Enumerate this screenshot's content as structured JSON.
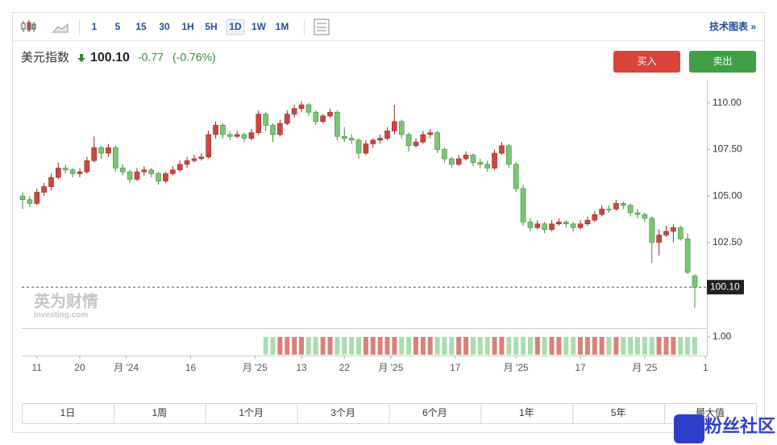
{
  "toolbar": {
    "intervals": [
      "1",
      "5",
      "15",
      "30",
      "1H",
      "5H",
      "1D",
      "1W",
      "1M"
    ],
    "active": "1D",
    "link": "技术图表 »"
  },
  "header": {
    "name": "美元指数",
    "price": "100.10",
    "change": "-0.77",
    "change_pct": "(-0.76%)",
    "buy": "买入",
    "sell": "卖出"
  },
  "periods": [
    "1日",
    "1周",
    "1个月",
    "3个月",
    "6个月",
    "1年",
    "5年",
    "最大值"
  ],
  "watermark": {
    "cn": "英为财情",
    "en": "Investing.com"
  },
  "corner_badge": "粉丝社区",
  "chart_data": {
    "type": "candlestick",
    "up_color": "#d0453e",
    "down_color": "#7cc576",
    "ylim": [
      97.9,
      111.2
    ],
    "yticks": [
      {
        "value": 110,
        "label": "110.00"
      },
      {
        "value": 107.5,
        "label": "107.50"
      },
      {
        "value": 105,
        "label": "105.00"
      },
      {
        "value": 102.5,
        "label": "102.50"
      }
    ],
    "last_price": {
      "value": 100.1,
      "label": "100.10"
    },
    "xticks": [
      {
        "value": 2,
        "label": "11"
      },
      {
        "value": 8,
        "label": "20"
      },
      {
        "value": 14.5,
        "label": "月 '24"
      },
      {
        "value": 23.5,
        "label": "16"
      },
      {
        "value": 32.5,
        "label": "月 '25"
      },
      {
        "value": 39,
        "label": "13"
      },
      {
        "value": 45,
        "label": "22"
      },
      {
        "value": 51.5,
        "label": "月 '25"
      },
      {
        "value": 60.5,
        "label": "17"
      },
      {
        "value": 69,
        "label": "月 '25"
      },
      {
        "value": 78,
        "label": "17"
      },
      {
        "value": 87,
        "label": "月 '25"
      },
      {
        "value": 95.5,
        "label": "1"
      }
    ],
    "candles": [
      [
        105.0,
        105.2,
        104.3,
        104.8
      ],
      [
        104.8,
        105.0,
        104.4,
        104.6
      ],
      [
        104.6,
        105.4,
        104.5,
        105.2
      ],
      [
        105.2,
        105.7,
        105.0,
        105.5
      ],
      [
        105.5,
        106.2,
        105.3,
        106.0
      ],
      [
        106.0,
        106.8,
        105.9,
        106.5
      ],
      [
        106.5,
        106.7,
        106.2,
        106.4
      ],
      [
        106.4,
        106.5,
        106.0,
        106.2
      ],
      [
        106.2,
        106.5,
        106.0,
        106.3
      ],
      [
        106.3,
        107.1,
        106.2,
        106.9
      ],
      [
        106.9,
        108.2,
        106.8,
        107.6
      ],
      [
        107.6,
        107.7,
        107.0,
        107.3
      ],
      [
        107.3,
        107.8,
        107.1,
        107.6
      ],
      [
        107.6,
        107.7,
        106.3,
        106.5
      ],
      [
        106.5,
        106.7,
        106.1,
        106.3
      ],
      [
        106.3,
        106.4,
        105.7,
        105.9
      ],
      [
        105.9,
        106.5,
        105.8,
        106.3
      ],
      [
        106.3,
        106.6,
        106.1,
        106.4
      ],
      [
        106.4,
        106.5,
        106.0,
        106.2
      ],
      [
        106.2,
        106.3,
        105.6,
        105.8
      ],
      [
        105.8,
        106.3,
        105.7,
        106.2
      ],
      [
        106.2,
        106.6,
        106.1,
        106.4
      ],
      [
        106.4,
        106.9,
        106.3,
        106.7
      ],
      [
        106.7,
        107.1,
        106.5,
        106.9
      ],
      [
        106.9,
        107.2,
        106.8,
        107.0
      ],
      [
        107.0,
        107.3,
        106.9,
        107.1
      ],
      [
        107.1,
        108.5,
        107.0,
        108.3
      ],
      [
        108.3,
        109.0,
        108.1,
        108.8
      ],
      [
        108.8,
        108.9,
        108.1,
        108.3
      ],
      [
        108.3,
        108.5,
        108.0,
        108.2
      ],
      [
        108.2,
        108.5,
        108.1,
        108.3
      ],
      [
        108.3,
        108.4,
        107.9,
        108.1
      ],
      [
        108.1,
        108.6,
        108.0,
        108.4
      ],
      [
        108.4,
        109.6,
        108.3,
        109.4
      ],
      [
        109.4,
        109.5,
        108.5,
        108.8
      ],
      [
        108.8,
        108.9,
        107.9,
        108.3
      ],
      [
        108.3,
        109.1,
        108.2,
        108.9
      ],
      [
        108.9,
        109.6,
        108.8,
        109.4
      ],
      [
        109.4,
        109.9,
        109.2,
        109.7
      ],
      [
        109.7,
        110.1,
        109.5,
        109.9
      ],
      [
        109.9,
        110.0,
        109.3,
        109.5
      ],
      [
        109.5,
        109.6,
        108.8,
        109.0
      ],
      [
        109.0,
        109.4,
        108.9,
        109.3
      ],
      [
        109.3,
        109.7,
        109.2,
        109.5
      ],
      [
        109.5,
        109.6,
        108.0,
        108.2
      ],
      [
        108.2,
        108.7,
        107.9,
        108.1
      ],
      [
        108.1,
        108.3,
        107.8,
        108.0
      ],
      [
        108.0,
        108.1,
        107.0,
        107.3
      ],
      [
        107.3,
        108.0,
        107.2,
        107.8
      ],
      [
        107.8,
        108.1,
        107.6,
        108.0
      ],
      [
        108.0,
        108.3,
        107.8,
        108.1
      ],
      [
        108.1,
        108.7,
        108.0,
        108.5
      ],
      [
        108.5,
        109.9,
        108.3,
        109.0
      ],
      [
        109.0,
        109.1,
        108.1,
        108.3
      ],
      [
        108.3,
        108.4,
        107.4,
        107.7
      ],
      [
        107.7,
        108.1,
        107.6,
        107.9
      ],
      [
        107.9,
        108.5,
        107.8,
        108.3
      ],
      [
        108.3,
        108.6,
        108.1,
        108.4
      ],
      [
        108.4,
        108.5,
        107.3,
        107.5
      ],
      [
        107.5,
        107.6,
        106.8,
        107.0
      ],
      [
        107.0,
        107.1,
        106.5,
        106.7
      ],
      [
        106.7,
        107.2,
        106.6,
        107.0
      ],
      [
        107.0,
        107.4,
        106.9,
        107.2
      ],
      [
        107.2,
        107.3,
        106.6,
        106.8
      ],
      [
        106.8,
        107.0,
        106.5,
        106.7
      ],
      [
        106.7,
        106.9,
        106.3,
        106.5
      ],
      [
        106.5,
        107.5,
        106.4,
        107.3
      ],
      [
        107.3,
        107.9,
        107.2,
        107.7
      ],
      [
        107.7,
        107.8,
        106.5,
        106.7
      ],
      [
        106.7,
        106.8,
        105.2,
        105.4
      ],
      [
        105.4,
        105.6,
        103.4,
        103.6
      ],
      [
        103.6,
        103.8,
        103.1,
        103.3
      ],
      [
        103.3,
        103.7,
        103.2,
        103.5
      ],
      [
        103.5,
        103.6,
        103.0,
        103.2
      ],
      [
        103.2,
        103.7,
        103.1,
        103.5
      ],
      [
        103.5,
        103.8,
        103.4,
        103.6
      ],
      [
        103.6,
        103.7,
        103.3,
        103.5
      ],
      [
        103.5,
        103.6,
        103.1,
        103.3
      ],
      [
        103.3,
        103.7,
        103.2,
        103.5
      ],
      [
        103.5,
        103.9,
        103.4,
        103.7
      ],
      [
        103.7,
        104.2,
        103.6,
        104.0
      ],
      [
        104.0,
        104.5,
        103.9,
        104.3
      ],
      [
        104.3,
        104.5,
        104.1,
        104.3
      ],
      [
        104.3,
        104.8,
        104.2,
        104.6
      ],
      [
        104.6,
        104.7,
        104.3,
        104.5
      ],
      [
        104.5,
        104.6,
        103.9,
        104.1
      ],
      [
        104.1,
        104.3,
        103.8,
        104.0
      ],
      [
        104.0,
        104.1,
        103.6,
        103.8
      ],
      [
        103.8,
        103.9,
        101.4,
        102.5
      ],
      [
        102.5,
        103.2,
        101.8,
        102.9
      ],
      [
        102.9,
        103.4,
        102.8,
        103.1
      ],
      [
        103.1,
        103.5,
        102.5,
        103.3
      ],
      [
        103.3,
        103.4,
        102.6,
        102.7
      ],
      [
        102.7,
        103.0,
        100.8,
        100.9
      ],
      [
        100.7,
        100.8,
        99.0,
        100.1
      ]
    ],
    "volume_lim": [
      0,
      1.45
    ],
    "volume_ticks": [
      {
        "value": 1,
        "label": "1.00"
      }
    ],
    "volume": [
      null,
      null,
      null,
      null,
      null,
      null,
      null,
      null,
      null,
      null,
      null,
      null,
      null,
      null,
      null,
      null,
      null,
      null,
      null,
      null,
      null,
      null,
      null,
      null,
      null,
      null,
      null,
      null,
      null,
      null,
      null,
      null,
      null,
      null,
      1,
      1,
      1,
      1,
      1,
      1,
      1,
      1,
      1,
      1,
      1,
      1,
      1,
      1,
      1,
      1,
      1,
      1,
      1,
      1,
      1,
      1,
      1,
      1,
      1,
      1,
      1,
      1,
      1,
      1,
      1,
      1,
      1,
      1,
      1,
      1,
      1,
      1,
      1,
      1,
      1,
      1,
      1,
      1,
      1,
      1,
      1,
      1,
      1,
      1,
      1,
      1,
      1,
      1,
      1,
      1,
      1,
      1,
      1,
      1,
      1
    ]
  }
}
